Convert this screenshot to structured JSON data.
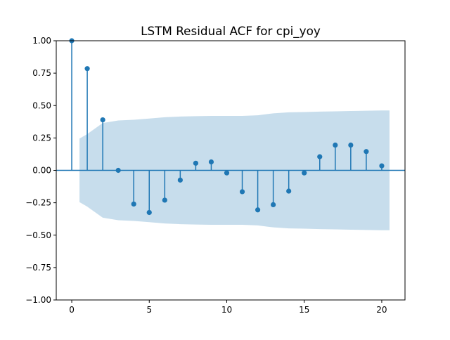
{
  "chart_data": {
    "type": "stem",
    "title": "LSTM Residual ACF for cpi_yoy",
    "xlabel": "",
    "ylabel": "",
    "xlim": [
      -1,
      21.5
    ],
    "ylim": [
      -1.0,
      1.0
    ],
    "x_ticks": [
      0,
      5,
      10,
      15,
      20
    ],
    "x_tick_labels": [
      "0",
      "5",
      "10",
      "15",
      "20"
    ],
    "y_ticks": [
      1.0,
      0.75,
      0.5,
      0.25,
      0.0,
      -0.25,
      -0.5,
      -0.75,
      -1.0
    ],
    "y_tick_labels": [
      "1.00",
      "0.75",
      "0.50",
      "0.25",
      "0.00",
      "−0.25",
      "−0.50",
      "−0.75",
      "−1.00"
    ],
    "grid": false,
    "series": [
      {
        "lags": [
          0,
          1,
          2,
          3,
          4,
          5,
          6,
          7,
          8,
          9,
          10,
          11,
          12,
          13,
          14,
          15,
          16,
          17,
          18,
          19,
          20
        ],
        "values": [
          1.0,
          0.785,
          0.39,
          0.0,
          -0.26,
          -0.325,
          -0.23,
          -0.075,
          0.055,
          0.065,
          -0.02,
          -0.165,
          -0.305,
          -0.265,
          -0.16,
          -0.02,
          0.105,
          0.195,
          0.195,
          0.145,
          0.035
        ],
        "color": "#1f77b4"
      }
    ],
    "confidence_band": {
      "lags": [
        0.5,
        1,
        2,
        3,
        4,
        5,
        6,
        7,
        8,
        9,
        10,
        11,
        12,
        13,
        14,
        15,
        16,
        17,
        18,
        19,
        20,
        20.5
      ],
      "upper": [
        0.245,
        0.28,
        0.365,
        0.385,
        0.39,
        0.4,
        0.41,
        0.415,
        0.418,
        0.42,
        0.42,
        0.42,
        0.425,
        0.44,
        0.448,
        0.45,
        0.453,
        0.455,
        0.458,
        0.46,
        0.462,
        0.462
      ],
      "color": "#1f77b4",
      "opacity": 0.25
    }
  }
}
